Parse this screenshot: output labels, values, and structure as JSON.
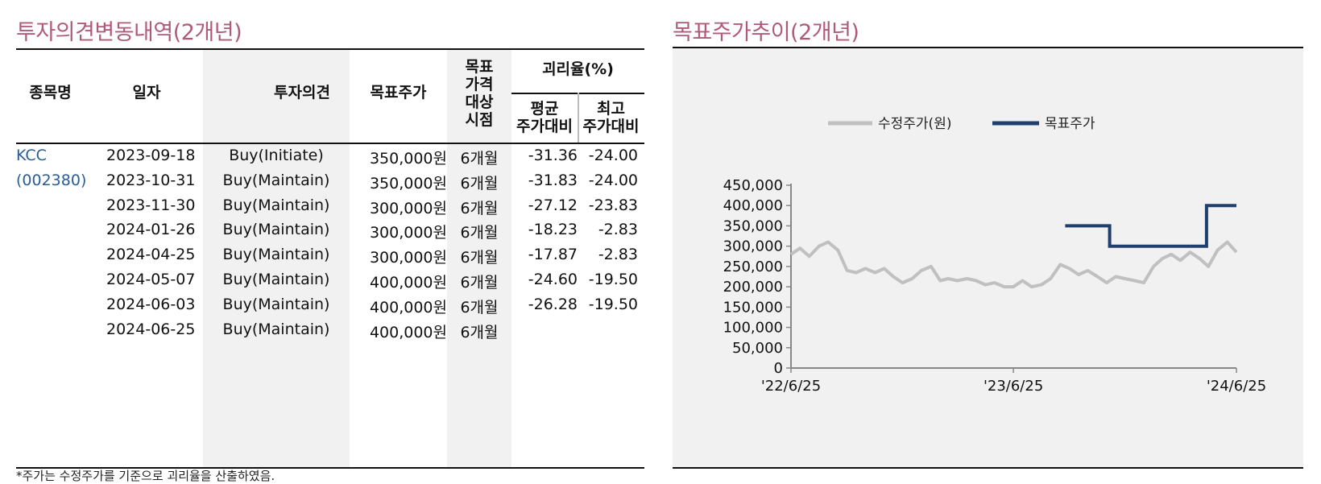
{
  "left_title": "투자의견변동내역(2개년)",
  "right_title": "목표주가추이(2개년)",
  "table": {
    "headers": {
      "name": "종목명",
      "date": "일자",
      "opinion": "투자의견",
      "target": "목표주가",
      "period": [
        "목표",
        "가격",
        "대상",
        "시점"
      ],
      "gap": "괴리율(%)",
      "avg": [
        "평균",
        "주가대비"
      ],
      "max": [
        "최고",
        "주가대비"
      ]
    },
    "company": [
      "KCC",
      "(002380)"
    ],
    "rows": [
      {
        "date": "2023-09-18",
        "opinion": "Buy(Initiate)",
        "target": "350,000원",
        "period": "6개월",
        "avg": "-31.36",
        "max": "-24.00"
      },
      {
        "date": "2023-10-31",
        "opinion": "Buy(Maintain)",
        "target": "350,000원",
        "period": "6개월",
        "avg": "-31.83",
        "max": "-24.00"
      },
      {
        "date": "2023-11-30",
        "opinion": "Buy(Maintain)",
        "target": "300,000원",
        "period": "6개월",
        "avg": "-27.12",
        "max": "-23.83"
      },
      {
        "date": "2024-01-26",
        "opinion": "Buy(Maintain)",
        "target": "300,000원",
        "period": "6개월",
        "avg": "-18.23",
        "max": "-2.83"
      },
      {
        "date": "2024-04-25",
        "opinion": "Buy(Maintain)",
        "target": "300,000원",
        "period": "6개월",
        "avg": "-17.87",
        "max": "-2.83"
      },
      {
        "date": "2024-05-07",
        "opinion": "Buy(Maintain)",
        "target": "400,000원",
        "period": "6개월",
        "avg": "-24.60",
        "max": "-19.50"
      },
      {
        "date": "2024-06-03",
        "opinion": "Buy(Maintain)",
        "target": "400,000원",
        "period": "6개월",
        "avg": "-26.28",
        "max": "-19.50"
      },
      {
        "date": "2024-06-25",
        "opinion": "Buy(Maintain)",
        "target": "400,000원",
        "period": "6개월",
        "avg": "",
        "max": ""
      }
    ]
  },
  "footnote": "*주가는 수정주가를 기준으로 괴리율을 산출하였음.",
  "chart_data": {
    "type": "line",
    "title": "목표주가추이(2개년)",
    "ylim": [
      0,
      450000
    ],
    "yticks": [
      "450,000",
      "400,000",
      "350,000",
      "300,000",
      "250,000",
      "200,000",
      "150,000",
      "100,000",
      "50,000",
      "0"
    ],
    "xticks": [
      "'22/6/25",
      "'23/6/25",
      "'24/6/25"
    ],
    "legend_placement": "top",
    "series": [
      {
        "name": "수정주가(원)",
        "color": "#c0c0c0",
        "x": [
          "2022-06-25",
          "2022-07-10",
          "2022-07-25",
          "2022-08-10",
          "2022-08-25",
          "2022-09-10",
          "2022-09-25",
          "2022-10-10",
          "2022-10-25",
          "2022-11-10",
          "2022-11-25",
          "2022-12-10",
          "2022-12-25",
          "2023-01-10",
          "2023-01-25",
          "2023-02-10",
          "2023-02-25",
          "2023-03-10",
          "2023-03-25",
          "2023-04-10",
          "2023-04-25",
          "2023-05-10",
          "2023-05-25",
          "2023-06-10",
          "2023-06-25",
          "2023-07-10",
          "2023-07-25",
          "2023-08-10",
          "2023-08-25",
          "2023-09-10",
          "2023-09-25",
          "2023-10-10",
          "2023-10-25",
          "2023-11-10",
          "2023-11-25",
          "2023-12-10",
          "2023-12-25",
          "2024-01-10",
          "2024-01-25",
          "2024-02-10",
          "2024-02-25",
          "2024-03-10",
          "2024-03-25",
          "2024-04-10",
          "2024-04-25",
          "2024-05-10",
          "2024-05-25",
          "2024-06-10",
          "2024-06-25"
        ],
        "y": [
          280000,
          295000,
          275000,
          300000,
          310000,
          290000,
          240000,
          235000,
          245000,
          235000,
          245000,
          225000,
          210000,
          220000,
          240000,
          250000,
          215000,
          220000,
          215000,
          220000,
          215000,
          205000,
          210000,
          200000,
          200000,
          215000,
          200000,
          205000,
          220000,
          255000,
          245000,
          230000,
          240000,
          225000,
          210000,
          225000,
          220000,
          215000,
          210000,
          250000,
          270000,
          280000,
          265000,
          285000,
          270000,
          250000,
          290000,
          310000,
          285000
        ]
      },
      {
        "name": "목표주가",
        "color": "#1f3f6e",
        "x": [
          "2023-09-18",
          "2023-11-30",
          "2024-05-07",
          "2024-06-25"
        ],
        "y": [
          350000,
          300000,
          400000,
          400000
        ]
      }
    ]
  }
}
